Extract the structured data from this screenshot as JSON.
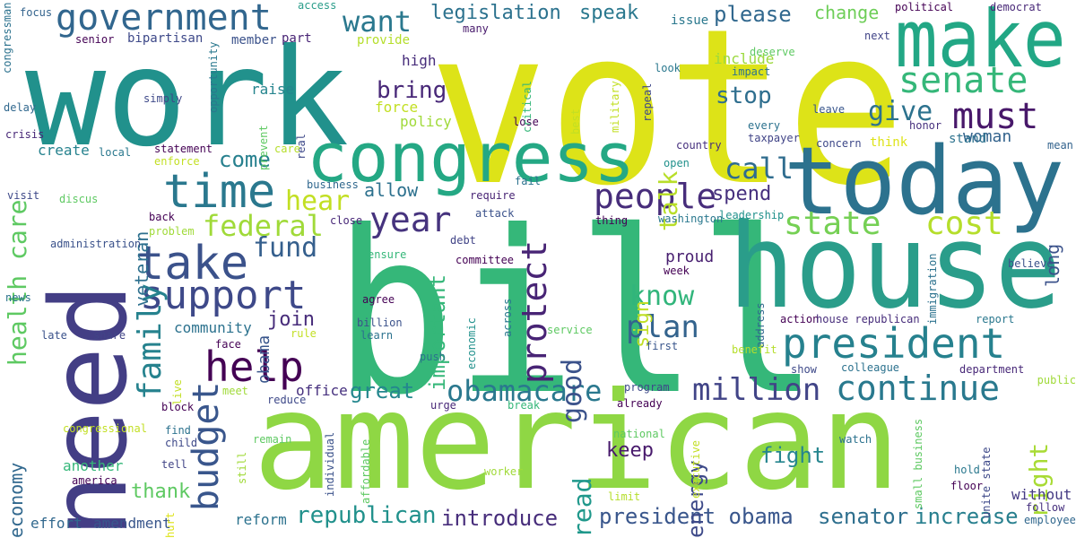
{
  "palette": {
    "dark_purple": "#440154",
    "indigo": "#472d7b",
    "blue_purple": "#3b528b",
    "steel_blue": "#2c728e",
    "teal": "#21918c",
    "sea_green": "#28ae80",
    "green": "#5ec962",
    "lime": "#addc30",
    "yellow": "#fde725"
  },
  "words": [
    {
      "text": "vote",
      "color": "#dde318"
    },
    {
      "text": "work",
      "color": "#21918c"
    },
    {
      "text": "bill",
      "color": "#35b779"
    },
    {
      "text": "need",
      "color": "#433e85"
    },
    {
      "text": "american",
      "color": "#8fd744"
    },
    {
      "text": "house",
      "color": "#2a9d8a"
    },
    {
      "text": "congress",
      "color": "#24a884"
    },
    {
      "text": "today",
      "color": "#2c728e"
    },
    {
      "text": "make",
      "color": "#22a785"
    },
    {
      "text": "government",
      "color": "#31668e"
    },
    {
      "text": "president",
      "color": "#26818e"
    },
    {
      "text": "time",
      "color": "#2a788e"
    },
    {
      "text": "take",
      "color": "#3b528b"
    },
    {
      "text": "support",
      "color": "#3e4989"
    },
    {
      "text": "help",
      "color": "#440154"
    },
    {
      "text": "senate",
      "color": "#35b779"
    },
    {
      "text": "must",
      "color": "#48186a"
    },
    {
      "text": "people",
      "color": "#472d7b"
    },
    {
      "text": "year",
      "color": "#46337e"
    },
    {
      "text": "continue",
      "color": "#29798e"
    },
    {
      "text": "obamacare",
      "color": "#2a788e"
    },
    {
      "text": "state",
      "color": "#75d054"
    },
    {
      "text": "cost",
      "color": "#b5de2b"
    },
    {
      "text": "protect",
      "color": "#482475"
    },
    {
      "text": "budget",
      "color": "#39568c"
    },
    {
      "text": "family",
      "color": "#26828e"
    },
    {
      "text": "million",
      "color": "#414487"
    },
    {
      "text": "health care",
      "color": "#5ec962"
    },
    {
      "text": "want",
      "color": "#2a788e"
    },
    {
      "text": "give",
      "color": "#2c728e"
    },
    {
      "text": "federal",
      "color": "#a0da39"
    },
    {
      "text": "fund",
      "color": "#355f8d"
    },
    {
      "text": "plan",
      "color": "#33638d"
    },
    {
      "text": "know",
      "color": "#31b57b"
    },
    {
      "text": "hear",
      "color": "#c2df23"
    },
    {
      "text": "call",
      "color": "#2f6c8e"
    },
    {
      "text": "good",
      "color": "#3b528b"
    },
    {
      "text": "talk",
      "color": "#b8de29"
    },
    {
      "text": "bring",
      "color": "#482878"
    },
    {
      "text": "stop",
      "color": "#2e6e8e"
    },
    {
      "text": "legislation",
      "color": "#2c728e"
    },
    {
      "text": "speak",
      "color": "#2a788e"
    },
    {
      "text": "please",
      "color": "#31688e"
    },
    {
      "text": "change",
      "color": "#6ece58"
    },
    {
      "text": "republican",
      "color": "#21918c"
    },
    {
      "text": "introduce",
      "color": "#472d7b"
    },
    {
      "text": "president obama",
      "color": "#39568c"
    },
    {
      "text": "senator",
      "color": "#2e6f8e"
    },
    {
      "text": "increase",
      "color": "#277f8e"
    },
    {
      "text": "fight",
      "color": "#25858e"
    },
    {
      "text": "keep",
      "color": "#481a6c"
    },
    {
      "text": "right",
      "color": "#a8db34"
    },
    {
      "text": "read",
      "color": "#1f988b"
    },
    {
      "text": "important",
      "color": "#35b779"
    },
    {
      "text": "energy",
      "color": "#3e4a89"
    },
    {
      "text": "great",
      "color": "#24878e"
    },
    {
      "text": "join",
      "color": "#472c7a"
    },
    {
      "text": "allow",
      "color": "#2d718e"
    },
    {
      "text": "spend",
      "color": "#46307e"
    },
    {
      "text": "sign",
      "color": "#c0df25"
    },
    {
      "text": "come",
      "color": "#27808e"
    },
    {
      "text": "thank",
      "color": "#5ec962"
    },
    {
      "text": "veteran",
      "color": "#2d708e"
    },
    {
      "text": "economy",
      "color": "#31688e"
    },
    {
      "text": "long",
      "color": "#3b528b"
    },
    {
      "text": "proud",
      "color": "#481f70"
    },
    {
      "text": "without",
      "color": "#443a83"
    },
    {
      "text": "woman",
      "color": "#33638d"
    },
    {
      "text": "include",
      "color": "#9bd93c"
    },
    {
      "text": "amendment",
      "color": "#39568c"
    },
    {
      "text": "effort",
      "color": "#31688e"
    },
    {
      "text": "reform",
      "color": "#2c728e"
    },
    {
      "text": "another",
      "color": "#35b779"
    },
    {
      "text": "office",
      "color": "#46307e"
    },
    {
      "text": "community",
      "color": "#2c728e"
    },
    {
      "text": "create",
      "color": "#26828e"
    },
    {
      "text": "obama",
      "color": "#39568c"
    },
    {
      "text": "raise",
      "color": "#25858e"
    },
    {
      "text": "policy",
      "color": "#a0da39"
    },
    {
      "text": "force",
      "color": "#c2df23"
    },
    {
      "text": "high",
      "color": "#472d7b"
    },
    {
      "text": "provide",
      "color": "#b5de2b"
    },
    {
      "text": "member",
      "color": "#3b528b"
    },
    {
      "text": "part",
      "color": "#482475"
    },
    {
      "text": "bipartisan",
      "color": "#3e4989"
    },
    {
      "text": "focus",
      "color": "#33638d"
    },
    {
      "text": "senior",
      "color": "#440154"
    },
    {
      "text": "access",
      "color": "#2a9d8a"
    },
    {
      "text": "many",
      "color": "#481a6c"
    },
    {
      "text": "issue",
      "color": "#2a788e"
    },
    {
      "text": "repeal",
      "color": "#3e4989"
    },
    {
      "text": "next",
      "color": "#414487"
    },
    {
      "text": "political",
      "color": "#440154"
    },
    {
      "text": "democrat",
      "color": "#482878"
    },
    {
      "text": "deserve",
      "color": "#5ec962"
    },
    {
      "text": "look",
      "color": "#2a788e"
    },
    {
      "text": "impact",
      "color": "#2c728e"
    },
    {
      "text": "leave",
      "color": "#39568c"
    },
    {
      "text": "honor",
      "color": "#46307e"
    },
    {
      "text": "every",
      "color": "#2c728e"
    },
    {
      "text": "taxpayer",
      "color": "#414487"
    },
    {
      "text": "concern",
      "color": "#3e4989"
    },
    {
      "text": "think",
      "color": "#dde318"
    },
    {
      "text": "stand",
      "color": "#2c728e"
    },
    {
      "text": "mean",
      "color": "#33638d"
    },
    {
      "text": "country",
      "color": "#46307e"
    },
    {
      "text": "open",
      "color": "#21918c"
    },
    {
      "text": "washington",
      "color": "#2a788e"
    },
    {
      "text": "leadership",
      "color": "#21918c"
    },
    {
      "text": "thing",
      "color": "#440154"
    },
    {
      "text": "attack",
      "color": "#3b528b"
    },
    {
      "text": "require",
      "color": "#482475"
    },
    {
      "text": "fail",
      "color": "#2c728e"
    },
    {
      "text": "close",
      "color": "#482878"
    },
    {
      "text": "business",
      "color": "#31688e"
    },
    {
      "text": "debt",
      "color": "#414487"
    },
    {
      "text": "committee",
      "color": "#440154"
    },
    {
      "text": "ensure",
      "color": "#35b779"
    },
    {
      "text": "week",
      "color": "#440154"
    },
    {
      "text": "believe",
      "color": "#3b528b"
    },
    {
      "text": "address",
      "color": "#31688e"
    },
    {
      "text": "immigration",
      "color": "#2c728e"
    },
    {
      "text": "action",
      "color": "#440154"
    },
    {
      "text": "house republican",
      "color": "#472d7b"
    },
    {
      "text": "report",
      "color": "#2a788e"
    },
    {
      "text": "first",
      "color": "#39568c"
    },
    {
      "text": "benefit",
      "color": "#b5de2b"
    },
    {
      "text": "show",
      "color": "#3e4989"
    },
    {
      "text": "colleague",
      "color": "#2c728e"
    },
    {
      "text": "department",
      "color": "#482878"
    },
    {
      "text": "public",
      "color": "#a0da39"
    },
    {
      "text": "program",
      "color": "#3e4989"
    },
    {
      "text": "already",
      "color": "#440154"
    },
    {
      "text": "national",
      "color": "#5ec962"
    },
    {
      "text": "executive",
      "color": "#c2df23"
    },
    {
      "text": "limit",
      "color": "#b5de2b"
    },
    {
      "text": "watch",
      "color": "#2c728e"
    },
    {
      "text": "small business",
      "color": "#5ec962"
    },
    {
      "text": "unite state",
      "color": "#3e4989"
    },
    {
      "text": "hold",
      "color": "#2a788e"
    },
    {
      "text": "floor",
      "color": "#440154"
    },
    {
      "text": "follow",
      "color": "#46307e"
    },
    {
      "text": "employee",
      "color": "#31688e"
    },
    {
      "text": "agree",
      "color": "#440154"
    },
    {
      "text": "billion",
      "color": "#3b528b"
    },
    {
      "text": "learn",
      "color": "#2c728e"
    },
    {
      "text": "service",
      "color": "#5ec962"
    },
    {
      "text": "economic",
      "color": "#21918c"
    },
    {
      "text": "across",
      "color": "#2a788e"
    },
    {
      "text": "push",
      "color": "#2c728e"
    },
    {
      "text": "urge",
      "color": "#482878"
    },
    {
      "text": "break",
      "color": "#35b779"
    },
    {
      "text": "affordable",
      "color": "#5ec962"
    },
    {
      "text": "individual",
      "color": "#3b528b"
    },
    {
      "text": "face",
      "color": "#440154"
    },
    {
      "text": "rule",
      "color": "#c2df23"
    },
    {
      "text": "live",
      "color": "#c2df23"
    },
    {
      "text": "meet",
      "color": "#a0da39"
    },
    {
      "text": "reduce",
      "color": "#3e4989"
    },
    {
      "text": "block",
      "color": "#440154"
    },
    {
      "text": "find",
      "color": "#2c728e"
    },
    {
      "text": "child",
      "color": "#3e4989"
    },
    {
      "text": "tell",
      "color": "#414487"
    },
    {
      "text": "still",
      "color": "#a0da39"
    },
    {
      "text": "remain",
      "color": "#5ec962"
    },
    {
      "text": "america",
      "color": "#440154"
    },
    {
      "text": "hurt",
      "color": "#dde318"
    },
    {
      "text": "congressional",
      "color": "#c2df23"
    },
    {
      "text": "late",
      "color": "#3b528b"
    },
    {
      "text": "share",
      "color": "#414487"
    },
    {
      "text": "news",
      "color": "#2c728e"
    },
    {
      "text": "administration",
      "color": "#3b528b"
    },
    {
      "text": "back",
      "color": "#440154"
    },
    {
      "text": "problem",
      "color": "#a0da39"
    },
    {
      "text": "discus",
      "color": "#5ec962"
    },
    {
      "text": "visit",
      "color": "#3e4989"
    },
    {
      "text": "enforce",
      "color": "#c2df23"
    },
    {
      "text": "local",
      "color": "#2a788e"
    },
    {
      "text": "statement",
      "color": "#440154"
    },
    {
      "text": "crisis",
      "color": "#482878"
    },
    {
      "text": "delay",
      "color": "#31688e"
    },
    {
      "text": "simply",
      "color": "#3e4989"
    },
    {
      "text": "congressman",
      "color": "#2c728e"
    },
    {
      "text": "opportunity",
      "color": "#2a788e"
    },
    {
      "text": "prevent",
      "color": "#5ec962"
    },
    {
      "text": "real",
      "color": "#3e4989"
    },
    {
      "text": "care",
      "color": "#b5de2b"
    },
    {
      "text": "lose",
      "color": "#440154"
    },
    {
      "text": "critical",
      "color": "#35b779"
    },
    {
      "text": "best",
      "color": "#c2df23"
    },
    {
      "text": "military",
      "color": "#c2df23"
    },
    {
      "text": "worker",
      "color": "#a0da39"
    }
  ]
}
